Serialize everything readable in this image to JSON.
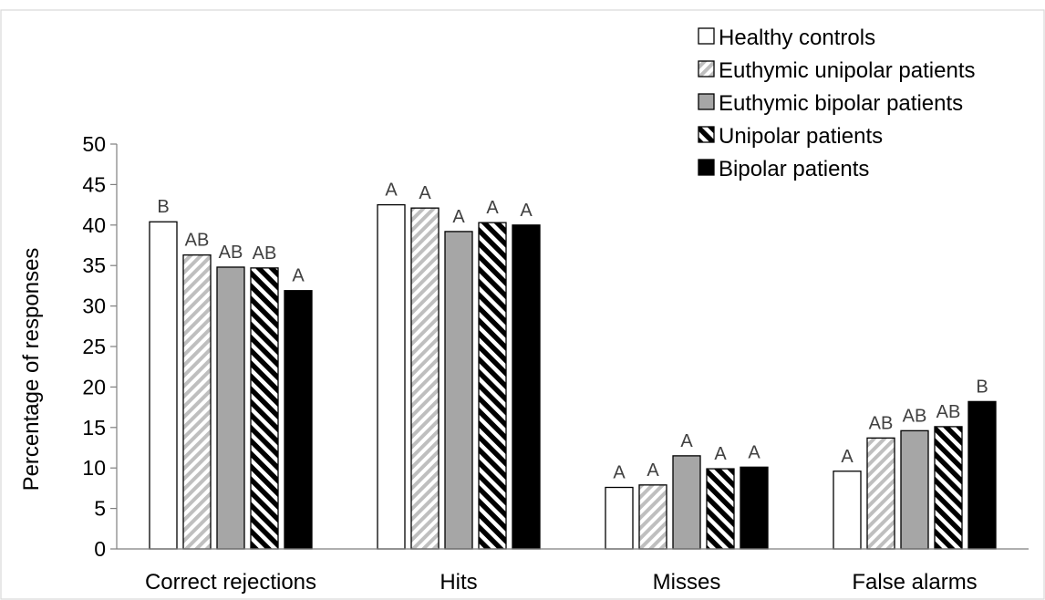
{
  "chart_data": {
    "type": "bar",
    "ylabel": "Percentage of responses",
    "xlabel": "",
    "ylim": [
      0,
      50
    ],
    "yticks": [
      0,
      5,
      10,
      15,
      20,
      25,
      30,
      35,
      40,
      45,
      50
    ],
    "grid": false,
    "legend_position": "top-right",
    "categories": [
      "Correct rejections",
      "Hits",
      "Misses",
      "False alarms"
    ],
    "series": [
      {
        "name": "Healthy controls",
        "pattern": "white",
        "color": "#ffffff",
        "values": [
          40.4,
          42.5,
          7.6,
          9.6
        ],
        "labels": [
          "B",
          "A",
          "A",
          "A"
        ]
      },
      {
        "name": "Euthymic unipolar patients",
        "pattern": "light-diagonal",
        "color": "#c8c8c8",
        "values": [
          36.3,
          42.1,
          7.9,
          13.7
        ],
        "labels": [
          "AB",
          "A",
          "A",
          "AB"
        ]
      },
      {
        "name": "Euthymic bipolar patients",
        "pattern": "gray",
        "color": "#a6a6a6",
        "values": [
          34.8,
          39.2,
          11.5,
          14.6
        ],
        "labels": [
          "AB",
          "A",
          "A",
          "AB"
        ]
      },
      {
        "name": "Unipolar patients",
        "pattern": "bold-diagonal",
        "color": "#000000",
        "values": [
          34.7,
          40.3,
          9.9,
          15.1
        ],
        "labels": [
          "AB",
          "A",
          "A",
          "AB"
        ]
      },
      {
        "name": "Bipolar patients",
        "pattern": "black",
        "color": "#000000",
        "values": [
          31.9,
          40.0,
          10.1,
          18.2
        ],
        "labels": [
          "A",
          "A",
          "A",
          "B"
        ]
      }
    ]
  }
}
